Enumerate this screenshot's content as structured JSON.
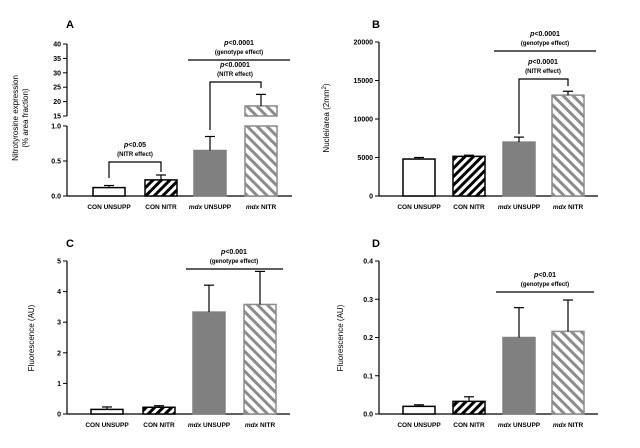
{
  "chart_data": [
    {
      "panel": "A",
      "type": "bar",
      "ylabel": "Nitrotyrosine expression (% area fraction)",
      "ylabel_lines": [
        "Nitrotyrosine expression",
        "(% area fraction)"
      ],
      "y_axis_break": true,
      "lower_segment": {
        "ylim": [
          0,
          1.0
        ],
        "ticks": [
          "0.0",
          "0.5",
          "1.0"
        ]
      },
      "upper_segment": {
        "ylim": [
          15,
          40
        ],
        "ticks": [
          "15",
          "20",
          "25",
          "30",
          "35",
          "40"
        ]
      },
      "categories": [
        "CON UNSUPP",
        "CON NITR",
        "mdx UNSUPP",
        "mdx NITR"
      ],
      "values": [
        0.12,
        0.23,
        0.65,
        18.5
      ],
      "errors": [
        0.03,
        0.07,
        0.2,
        4.0
      ],
      "annotations": [
        {
          "p": "p<0.05",
          "effect": "(NITR effect)"
        },
        {
          "p": "p<0.0001",
          "effect": "(NITR effect)"
        },
        {
          "p": "p<0.0001",
          "effect": "(genotype effect)"
        }
      ]
    },
    {
      "panel": "B",
      "type": "bar",
      "ylabel": "Nuclei/area (2mm2)",
      "ylim": [
        0,
        20000
      ],
      "ticks": [
        "0",
        "5000",
        "10000",
        "15000",
        "20000"
      ],
      "categories": [
        "CON UNSUPP",
        "CON NITR",
        "mdx UNSUPP",
        "mdx NITR"
      ],
      "values": [
        4800,
        5150,
        7000,
        13100
      ],
      "errors": [
        200,
        150,
        650,
        500
      ],
      "annotations": [
        {
          "p": "p<0.0001",
          "effect": "(genotype effect)"
        },
        {
          "p": "p<0.0001",
          "effect": "(NITR effect)"
        }
      ]
    },
    {
      "panel": "C",
      "type": "bar",
      "ylabel": "Fluorescence (AU)",
      "ylim": [
        0,
        5
      ],
      "ticks": [
        "0",
        "1",
        "2",
        "3",
        "4",
        "5"
      ],
      "categories": [
        "CON UNSUPP",
        "CON NITR",
        "mdx UNSUPP",
        "mdx NITR"
      ],
      "values": [
        0.15,
        0.22,
        3.33,
        3.58
      ],
      "errors": [
        0.08,
        0.05,
        0.88,
        1.08
      ],
      "annotations": [
        {
          "p": "p<0.001",
          "effect": "(genotype effect)"
        }
      ]
    },
    {
      "panel": "D",
      "type": "bar",
      "ylabel": "Fluorescence (AU)",
      "ylim": [
        0,
        0.4
      ],
      "ticks": [
        "0.0",
        "0.1",
        "0.2",
        "0.3",
        "0.4"
      ],
      "categories": [
        "CON UNSUPP",
        "CON NITR",
        "mdx UNSUPP",
        "mdx NITR"
      ],
      "values": [
        0.02,
        0.033,
        0.2,
        0.216
      ],
      "errors": [
        0.004,
        0.012,
        0.078,
        0.082
      ],
      "annotations": [
        {
          "p": "p<0.01",
          "effect": "(genotype effect)"
        }
      ]
    }
  ],
  "colors": {
    "axis": "#000000",
    "con_unsupp_fill": "#ffffff",
    "con_nitr_hatch": "#000000",
    "mdx_unsupp_fill": "#808080",
    "mdx_nitr_hatch": "#8c8c8c"
  }
}
